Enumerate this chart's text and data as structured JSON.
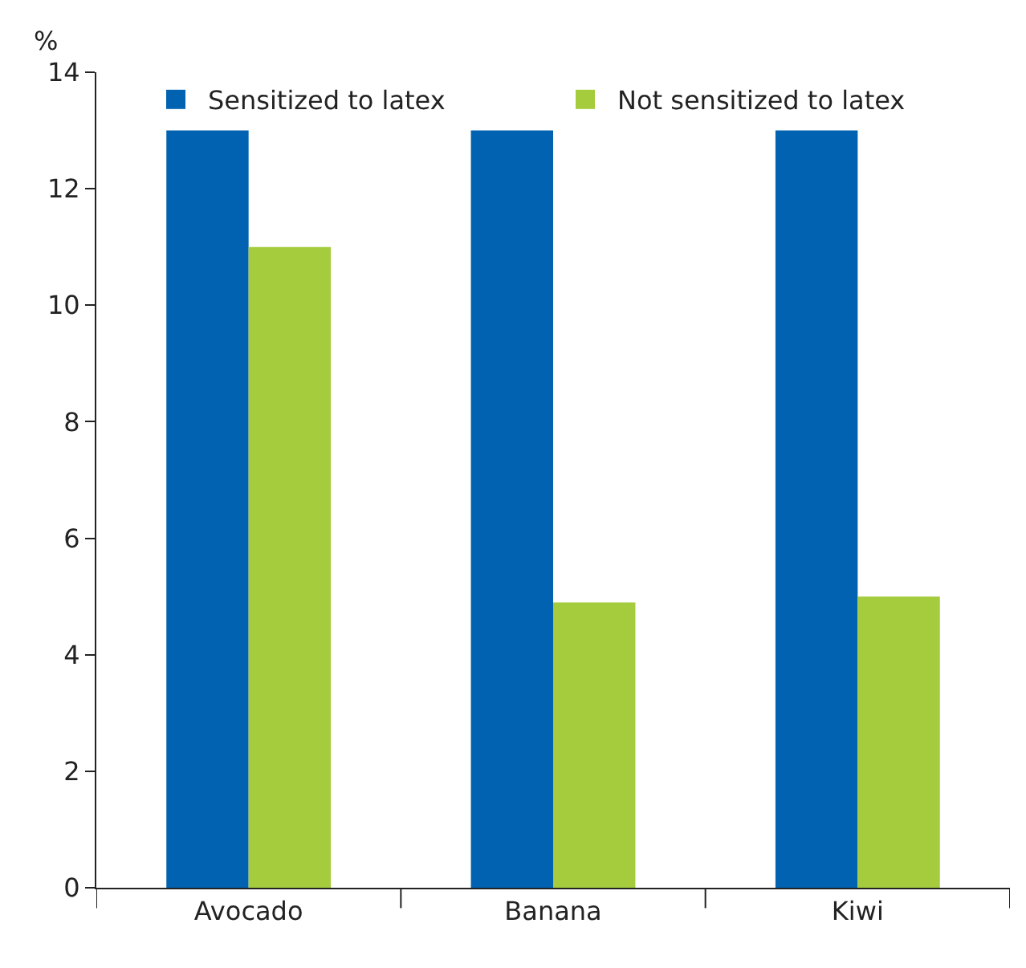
{
  "chart_data": {
    "type": "bar",
    "ylabel": "%",
    "categories": [
      "Avocado",
      "Banana",
      "Kiwi"
    ],
    "series": [
      {
        "name": "Sensitized to latex",
        "color": "#0062b0",
        "values": [
          13,
          13,
          13
        ]
      },
      {
        "name": "Not sensitized to latex",
        "color": "#a4cc3c",
        "values": [
          11,
          4.9,
          5
        ]
      }
    ],
    "ylim": [
      0,
      14
    ],
    "yticks": [
      0,
      2,
      4,
      6,
      8,
      10,
      12,
      14
    ],
    "grid": false,
    "legend": "top"
  }
}
